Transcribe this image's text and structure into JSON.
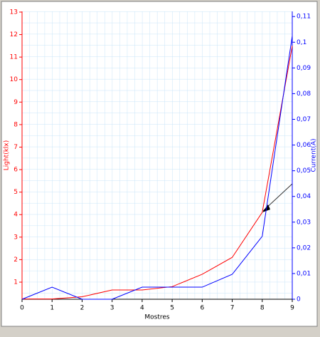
{
  "chart_data": {
    "type": "line",
    "x": [
      0,
      1,
      2,
      3,
      4,
      5,
      6,
      7,
      8,
      9
    ],
    "xlabel": "Mostres",
    "ylabel": "Light(klx)",
    "y2label": "Current(A)",
    "xlim": [
      0,
      9
    ],
    "xticks": [
      0,
      1,
      2,
      3,
      4,
      5,
      6,
      7,
      8,
      9
    ],
    "ylim": [
      0.24,
      13.03
    ],
    "yticks": [
      1,
      2,
      3,
      4,
      5,
      6,
      7,
      8,
      9,
      10,
      11,
      12,
      13
    ],
    "y2lim": [
      0,
      0.112
    ],
    "y2ticks": [
      0,
      {
        "value": 0.01,
        "label": "0,01"
      },
      {
        "value": 0.02,
        "label": "0,02"
      },
      {
        "value": 0.03,
        "label": "0,03"
      },
      {
        "value": 0.04,
        "label": "0,04"
      },
      {
        "value": 0.05,
        "label": "0,05"
      },
      {
        "value": 0.06,
        "label": "0,06"
      },
      {
        "value": 0.07,
        "label": "0,07"
      },
      {
        "value": 0.08,
        "label": "0,08"
      },
      {
        "value": 0.09,
        "label": "0,09"
      },
      {
        "value": 0.1,
        "label": "0,1"
      },
      {
        "value": 0.11,
        "label": "0,11"
      }
    ],
    "grid": true,
    "series": [
      {
        "name": "Light",
        "color": "#ff0000",
        "values": [
          0.25,
          0.25,
          0.35,
          0.65,
          0.65,
          0.8,
          1.35,
          2.1,
          4.1,
          11.5
        ]
      },
      {
        "name": "Current",
        "color": "#0000ff",
        "axis": "y2",
        "values": [
          0,
          0.0047,
          0,
          0,
          0.0047,
          0.0047,
          0.0047,
          0.0097,
          0.0245,
          0.1025
        ]
      }
    ]
  }
}
